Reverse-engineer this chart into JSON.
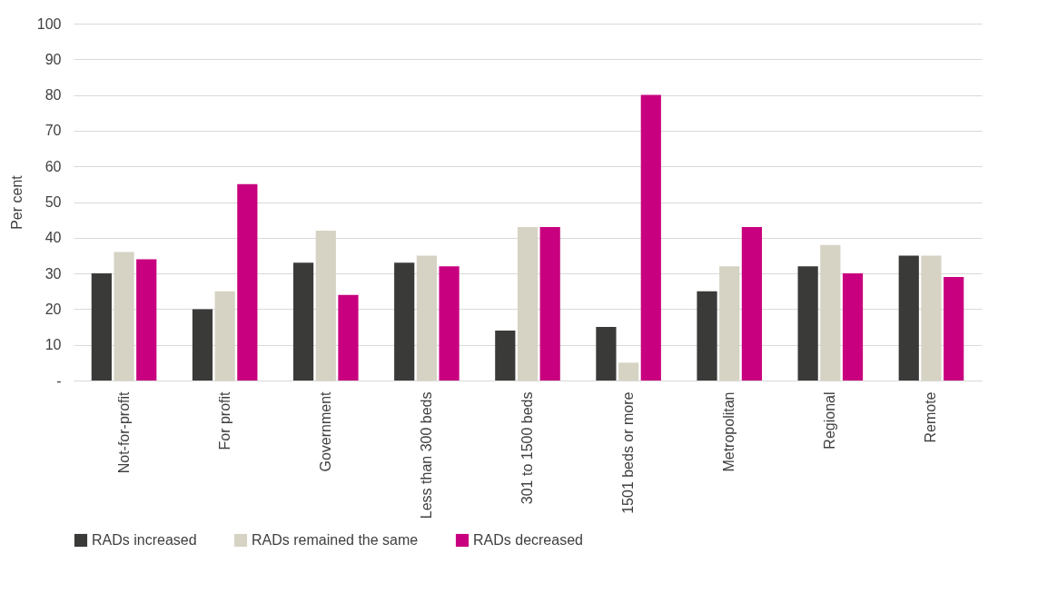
{
  "chart_data": {
    "type": "bar",
    "ylabel": "Per cent",
    "categories": [
      "Not-for-profit",
      "For profit",
      "Government",
      "Less than 300 beds",
      "301 to 1500 beds",
      "1501 beds or more",
      "Metropolitan",
      "Regional",
      "Remote"
    ],
    "series": [
      {
        "name": "RADs increased",
        "color": "#3a3b39",
        "values": [
          30,
          20,
          33,
          33,
          14,
          15,
          25,
          32,
          35
        ]
      },
      {
        "name": "RADs remained the same",
        "color": "#d6d3c4",
        "values": [
          36,
          25,
          42,
          35,
          43,
          5,
          32,
          38,
          35
        ]
      },
      {
        "name": "RADs decreased",
        "color": "#c8007f",
        "values": [
          34,
          55,
          24,
          32,
          43,
          80,
          43,
          30,
          29
        ]
      }
    ],
    "ylim": [
      0,
      100
    ],
    "yticks": [
      {
        "value": 0,
        "label": "-"
      },
      10,
      20,
      30,
      40,
      50,
      60,
      70,
      80,
      90,
      100
    ],
    "grid": "y",
    "legend": "bottom"
  }
}
